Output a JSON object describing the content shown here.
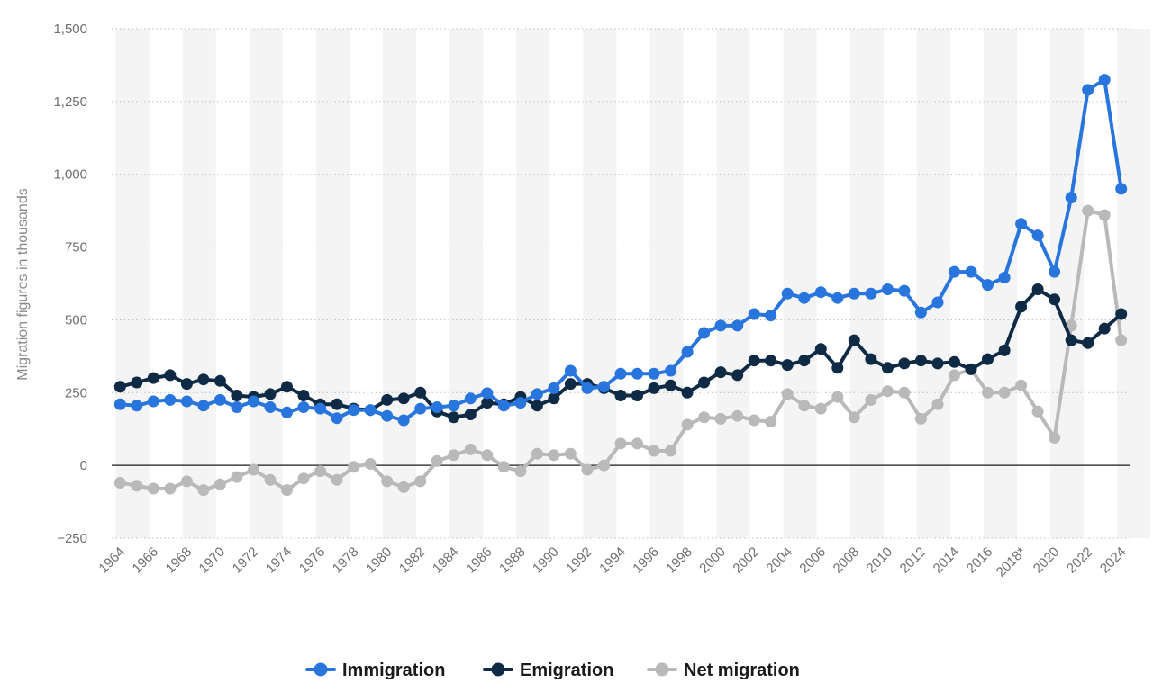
{
  "chart_data": {
    "type": "line",
    "title": "",
    "xlabel": "",
    "ylabel": "Migration figures in thousands",
    "ylim": [
      -250,
      1500
    ],
    "yticks": [
      -250,
      0,
      250,
      500,
      750,
      1000,
      1250,
      1500
    ],
    "ytick_labels": [
      "−250",
      "0",
      "250",
      "500",
      "750",
      "1,000",
      "1,250",
      "1,500"
    ],
    "grid": true,
    "legend_position": "bottom-center",
    "x_labels": [
      "1964",
      "1965",
      "1966",
      "1967",
      "1968",
      "1969",
      "1970",
      "1971",
      "1972",
      "1973",
      "1974",
      "1975",
      "1976",
      "1977",
      "1978",
      "1979",
      "1980",
      "1981",
      "1982",
      "1983",
      "1984",
      "1985",
      "1986",
      "1987",
      "1988",
      "1989",
      "1990",
      "1991",
      "1992",
      "1993",
      "1994",
      "1995",
      "1996",
      "1997",
      "1998",
      "1999",
      "2000",
      "2001",
      "2002",
      "2003",
      "2004",
      "2005",
      "2006",
      "2007",
      "2008",
      "2009",
      "2010",
      "2011",
      "2012",
      "2013",
      "2014",
      "2015",
      "2016",
      "2017",
      "2018*",
      "2019",
      "2020",
      "2021",
      "2022",
      "2023",
      "2024"
    ],
    "tick_labels": [
      "1964",
      "1966",
      "1968",
      "1970",
      "1972",
      "1974",
      "1976",
      "1978",
      "1980",
      "1982",
      "1984",
      "1986",
      "1988",
      "1990",
      "1992",
      "1994",
      "1996",
      "1998",
      "2000",
      "2002",
      "2004",
      "2006",
      "2008",
      "2010",
      "2012",
      "2014",
      "2016",
      "2018*",
      "2020",
      "2022",
      "2024"
    ],
    "series": [
      {
        "name": "Immigration",
        "color": "#2876dd",
        "values": [
          210,
          205,
          220,
          225,
          220,
          205,
          225,
          200,
          220,
          200,
          182,
          200,
          195,
          162,
          190,
          190,
          170,
          155,
          195,
          200,
          205,
          230,
          248,
          205,
          215,
          245,
          265,
          325,
          265,
          270,
          315,
          315,
          315,
          325,
          390,
          455,
          480,
          480,
          520,
          515,
          590,
          575,
          595,
          575,
          590,
          590,
          605,
          600,
          525,
          560,
          665,
          665,
          620,
          645,
          830,
          790,
          665,
          920,
          1290,
          1325,
          950
        ]
      },
      {
        "name": "Emigration",
        "color": "#0f2a44",
        "values": [
          270,
          285,
          300,
          310,
          280,
          295,
          290,
          240,
          235,
          245,
          270,
          240,
          210,
          210,
          195,
          190,
          225,
          230,
          250,
          185,
          165,
          175,
          215,
          210,
          235,
          205,
          230,
          280,
          280,
          265,
          240,
          240,
          265,
          275,
          250,
          285,
          320,
          310,
          360,
          360,
          345,
          360,
          400,
          335,
          430,
          365,
          335,
          350,
          360,
          350,
          355,
          330,
          365,
          395,
          545,
          605,
          570,
          430,
          420,
          470,
          520
        ]
      },
      {
        "name": "Net migration",
        "color": "#b9b9b9",
        "values": [
          -60,
          -70,
          -80,
          -80,
          -55,
          -85,
          -65,
          -40,
          -15,
          -50,
          -85,
          -45,
          -20,
          -50,
          -5,
          5,
          -55,
          -75,
          -55,
          15,
          35,
          55,
          35,
          -5,
          -20,
          40,
          35,
          40,
          -15,
          0,
          75,
          75,
          50,
          50,
          140,
          165,
          160,
          170,
          155,
          150,
          245,
          205,
          195,
          235,
          165,
          225,
          255,
          250,
          160,
          210,
          310,
          330,
          250,
          250,
          275,
          185,
          95,
          480,
          875,
          860,
          430
        ]
      }
    ]
  }
}
